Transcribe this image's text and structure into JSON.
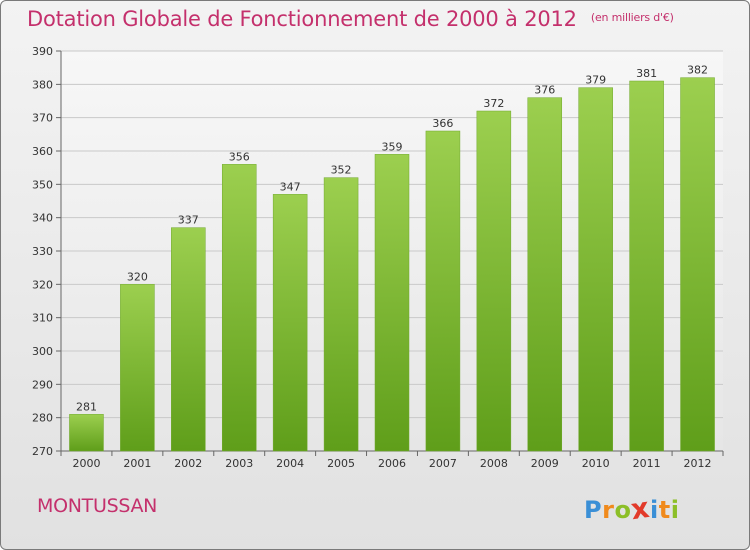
{
  "header": {
    "title": "Dotation Globale de Fonctionnement de 2000 à 2012",
    "unit": "(en milliers d'€)"
  },
  "commune": "MONTUSSAN",
  "logo": {
    "letters": [
      "P",
      "r",
      "o",
      "x",
      "i",
      "t",
      "i"
    ],
    "colors": [
      "#3a8fd6",
      "#f08a1c",
      "#8cbf28",
      "#e23a2a",
      "#3a8fd6",
      "#f08a1c",
      "#8cbf28"
    ]
  },
  "chart_data": {
    "type": "bar",
    "categories": [
      "2000",
      "2001",
      "2002",
      "2003",
      "2004",
      "2005",
      "2006",
      "2007",
      "2008",
      "2009",
      "2010",
      "2011",
      "2012"
    ],
    "values": [
      281,
      320,
      337,
      356,
      347,
      352,
      359,
      366,
      372,
      376,
      379,
      381,
      382
    ],
    "ylim": [
      270,
      390
    ],
    "yticks": [
      "270",
      "280",
      "290",
      "300",
      "310",
      "320",
      "330",
      "340",
      "350",
      "360",
      "370",
      "380",
      "390"
    ],
    "grid": true,
    "bar_color_top": "#9ccf4f",
    "bar_color_bottom": "#5f9e1a"
  }
}
